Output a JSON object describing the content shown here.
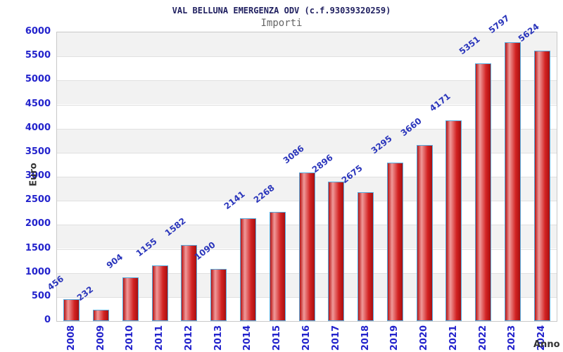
{
  "chart_data": {
    "type": "bar",
    "title": "VAL BELLUNA EMERGENZA ODV (c.f.93039320259)",
    "subtitle": "Importi",
    "xlabel": "Anno",
    "ylabel": "Euro",
    "categories": [
      "2008",
      "2009",
      "2010",
      "2011",
      "2012",
      "2013",
      "2014",
      "2015",
      "2016",
      "2017",
      "2018",
      "2019",
      "2020",
      "2021",
      "2022",
      "2023",
      "2024"
    ],
    "values": [
      456,
      232,
      904,
      1155,
      1582,
      1090,
      2141,
      2268,
      3086,
      2896,
      2675,
      3295,
      3660,
      4171,
      5351,
      5797,
      5624
    ],
    "ylim": [
      0,
      6000
    ],
    "ystep": 500,
    "grid": "horizontal-bands",
    "legend": "none",
    "colors": {
      "title": "#202060",
      "subtitle": "#666666",
      "tick_label": "#2323cc",
      "value_label": "#2a35bb",
      "axis_title": "#333333",
      "band_gray": "#f2f2f2",
      "band_white": "#ffffff",
      "gridline": "#e0e0e0",
      "plot_border": "#c8c8c8",
      "bar_border": "#55aadd",
      "bar_gradient": [
        "#b81414",
        "#f09a9a",
        "#d22222",
        "#a81010"
      ]
    }
  }
}
